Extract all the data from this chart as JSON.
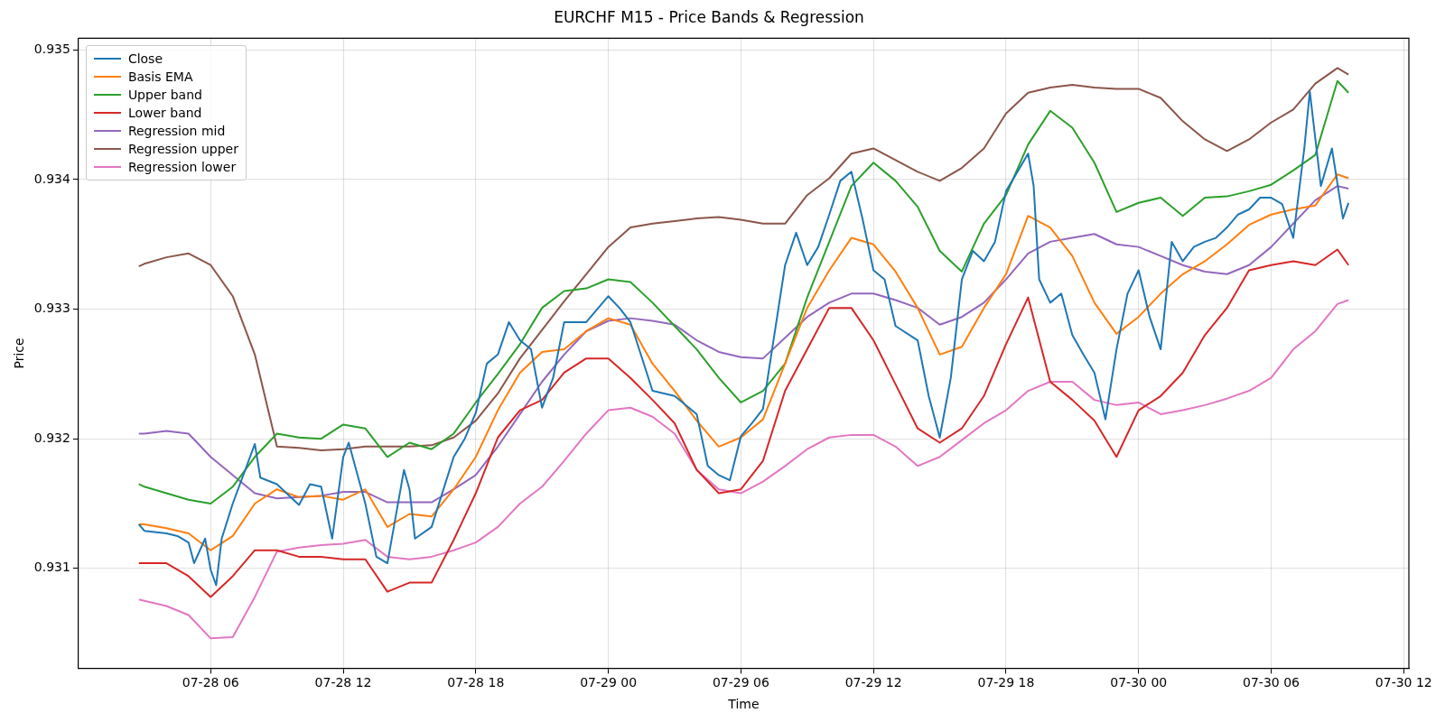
{
  "chart_data": {
    "type": "line",
    "title": "EURCHF M15 - Price Bands & Regression",
    "xlabel": "Time",
    "ylabel": "Price",
    "xlim": [
      "--07-28T00:01",
      "--07-30T12:14"
    ],
    "xticks": [
      {
        "value": "--07-28T06:00",
        "label": "07-28 06"
      },
      {
        "value": "--07-28T12:00",
        "label": "07-28 12"
      },
      {
        "value": "--07-28T18:00",
        "label": "07-28 18"
      },
      {
        "value": "--07-29T00:00",
        "label": "07-29 00"
      },
      {
        "value": "--07-29T06:00",
        "label": "07-29 06"
      },
      {
        "value": "--07-29T12:00",
        "label": "07-29 12"
      },
      {
        "value": "--07-29T18:00",
        "label": "07-29 18"
      },
      {
        "value": "--07-30T00:00",
        "label": "07-30 00"
      },
      {
        "value": "--07-30T06:00",
        "label": "07-30 06"
      },
      {
        "value": "--07-30T12:00",
        "label": "07-30 12"
      }
    ],
    "ylim": [
      0.93023,
      0.93509
    ],
    "yticks": [
      0.931,
      0.932,
      0.933,
      0.934,
      0.935
    ],
    "grid": true,
    "legend": "top left",
    "x": [
      "--07-28T02:45",
      "--07-28T03:00",
      "--07-28T04:00",
      "--07-28T05:00",
      "--07-28T06:00",
      "--07-28T07:00",
      "--07-28T08:00",
      "--07-28T09:00",
      "--07-28T10:00",
      "--07-28T11:00",
      "--07-28T12:00",
      "--07-28T13:00",
      "--07-28T14:00",
      "--07-28T15:00",
      "--07-28T16:00",
      "--07-28T17:00",
      "--07-28T18:00",
      "--07-28T19:00",
      "--07-28T20:00",
      "--07-28T21:00",
      "--07-28T22:00",
      "--07-28T23:00",
      "--07-29T00:00",
      "--07-29T01:00",
      "--07-29T02:00",
      "--07-29T03:00",
      "--07-29T04:00",
      "--07-29T05:00",
      "--07-29T06:00",
      "--07-29T07:00",
      "--07-29T08:00",
      "--07-29T09:00",
      "--07-29T10:00",
      "--07-29T11:00",
      "--07-29T12:00",
      "--07-29T13:00",
      "--07-29T14:00",
      "--07-29T15:00",
      "--07-29T16:00",
      "--07-29T17:00",
      "--07-29T18:00",
      "--07-29T19:00",
      "--07-29T20:00",
      "--07-29T21:00",
      "--07-29T22:00",
      "--07-29T23:00",
      "--07-30T00:00",
      "--07-30T01:00",
      "--07-30T02:00",
      "--07-30T03:00",
      "--07-30T04:00",
      "--07-30T05:00",
      "--07-30T06:00",
      "--07-30T07:00",
      "--07-30T08:00",
      "--07-30T09:00",
      "--07-30T09:30"
    ],
    "series": [
      {
        "name": "Close",
        "color": "#1f77b4",
        "x": [
          "--07-28T02:45",
          "--07-28T03:00",
          "--07-28T04:00",
          "--07-28T04:30",
          "--07-28T05:00",
          "--07-28T05:15",
          "--07-28T05:45",
          "--07-28T06:00",
          "--07-28T06:15",
          "--07-28T06:30",
          "--07-28T07:00",
          "--07-28T08:00",
          "--07-28T08:15",
          "--07-28T09:00",
          "--07-28T10:00",
          "--07-28T10:30",
          "--07-28T11:00",
          "--07-28T11:30",
          "--07-28T12:00",
          "--07-28T12:15",
          "--07-28T13:00",
          "--07-28T13:30",
          "--07-28T14:00",
          "--07-28T14:45",
          "--07-28T15:00",
          "--07-28T15:15",
          "--07-28T16:00",
          "--07-28T17:00",
          "--07-28T17:30",
          "--07-28T18:00",
          "--07-28T18:30",
          "--07-28T19:00",
          "--07-28T19:30",
          "--07-28T20:00",
          "--07-28T20:30",
          "--07-28T21:00",
          "--07-28T21:30",
          "--07-28T22:00",
          "--07-28T23:00",
          "--07-29T00:00",
          "--07-29T00:30",
          "--07-29T01:00",
          "--07-29T02:00",
          "--07-29T03:00",
          "--07-29T04:00",
          "--07-29T04:30",
          "--07-29T05:00",
          "--07-29T05:30",
          "--07-29T06:00",
          "--07-29T06:30",
          "--07-29T07:00",
          "--07-29T07:15",
          "--07-29T08:00",
          "--07-29T08:30",
          "--07-29T09:00",
          "--07-29T09:30",
          "--07-29T10:00",
          "--07-29T10:30",
          "--07-29T11:00",
          "--07-29T11:30",
          "--07-29T12:00",
          "--07-29T12:30",
          "--07-29T13:00",
          "--07-29T14:00",
          "--07-29T14:30",
          "--07-29T15:00",
          "--07-29T15:30",
          "--07-29T16:00",
          "--07-29T16:30",
          "--07-29T17:00",
          "--07-29T17:30",
          "--07-29T18:00",
          "--07-29T19:00",
          "--07-29T19:15",
          "--07-29T19:30",
          "--07-29T20:00",
          "--07-29T20:30",
          "--07-29T21:00",
          "--07-29T21:30",
          "--07-29T22:00",
          "--07-29T22:30",
          "--07-29T23:00",
          "--07-29T23:30",
          "--07-30T00:00",
          "--07-30T00:30",
          "--07-30T01:00",
          "--07-30T01:30",
          "--07-30T02:00",
          "--07-30T02:30",
          "--07-30T03:00",
          "--07-30T03:30",
          "--07-30T04:00",
          "--07-30T04:30",
          "--07-30T05:00",
          "--07-30T05:30",
          "--07-30T06:00",
          "--07-30T06:30",
          "--07-30T07:00",
          "--07-30T07:30",
          "--07-30T07:45",
          "--07-30T08:15",
          "--07-30T08:45",
          "--07-30T09:15",
          "--07-30T09:30"
        ],
        "values": [
          0.93134,
          0.93129,
          0.93127,
          0.93125,
          0.9312,
          0.93104,
          0.93123,
          0.93099,
          0.93087,
          0.93123,
          0.9315,
          0.93196,
          0.9317,
          0.93165,
          0.93149,
          0.93165,
          0.93163,
          0.93123,
          0.93186,
          0.93197,
          0.9315,
          0.93109,
          0.93104,
          0.93176,
          0.93161,
          0.93123,
          0.93132,
          0.93186,
          0.932,
          0.9322,
          0.93258,
          0.93265,
          0.9329,
          0.93276,
          0.93269,
          0.93224,
          0.93247,
          0.9329,
          0.9329,
          0.9331,
          0.93301,
          0.9329,
          0.93237,
          0.93233,
          0.93219,
          0.93179,
          0.93172,
          0.93168,
          0.93202,
          0.93212,
          0.93223,
          0.93251,
          0.93334,
          0.93359,
          0.93334,
          0.93348,
          0.93373,
          0.93399,
          0.93406,
          0.9337,
          0.9333,
          0.93323,
          0.93287,
          0.93276,
          0.93233,
          0.93201,
          0.93247,
          0.93323,
          0.93345,
          0.93337,
          0.93352,
          0.93391,
          0.9342,
          0.93395,
          0.93323,
          0.93305,
          0.93312,
          0.9328,
          0.93265,
          0.93251,
          0.93215,
          0.93269,
          0.93312,
          0.9333,
          0.93294,
          0.93269,
          0.93352,
          0.93337,
          0.93348,
          0.93352,
          0.93355,
          0.93363,
          0.93373,
          0.93377,
          0.93386,
          0.93386,
          0.93381,
          0.93355,
          0.93424,
          0.93468,
          0.93395,
          0.93424,
          0.9337,
          0.93382
        ]
      },
      {
        "name": "Basis EMA",
        "color": "#ff7f0e",
        "values": [
          0.93134,
          0.93134,
          0.93131,
          0.93127,
          0.93114,
          0.93125,
          0.9315,
          0.93161,
          0.93155,
          0.93156,
          0.93153,
          0.93161,
          0.93132,
          0.93142,
          0.9314,
          0.93161,
          0.93186,
          0.93222,
          0.93251,
          0.93267,
          0.93269,
          0.93283,
          0.93293,
          0.93288,
          0.93258,
          0.93237,
          0.93214,
          0.93194,
          0.93201,
          0.93215,
          0.93258,
          0.93301,
          0.9333,
          0.93355,
          0.9335,
          0.93329,
          0.93301,
          0.93265,
          0.93271,
          0.93301,
          0.93327,
          0.93372,
          0.93363,
          0.93341,
          0.93305,
          0.93281,
          0.93294,
          0.93312,
          0.93327,
          0.93337,
          0.9335,
          0.93365,
          0.93373,
          0.93377,
          0.9338,
          0.93404,
          0.93401
        ]
      },
      {
        "name": "Upper band",
        "color": "#2ca02c",
        "values": [
          0.93165,
          0.93163,
          0.93158,
          0.93153,
          0.9315,
          0.93163,
          0.93186,
          0.93204,
          0.93201,
          0.932,
          0.93211,
          0.93208,
          0.93186,
          0.93197,
          0.93192,
          0.93204,
          0.93228,
          0.9325,
          0.93273,
          0.93301,
          0.93314,
          0.93316,
          0.93323,
          0.93321,
          0.93305,
          0.93287,
          0.93269,
          0.93247,
          0.93228,
          0.93237,
          0.93258,
          0.93309,
          0.93352,
          0.93395,
          0.93413,
          0.93399,
          0.93379,
          0.93345,
          0.93329,
          0.93366,
          0.93388,
          0.93427,
          0.93453,
          0.9344,
          0.93413,
          0.93375,
          0.93382,
          0.93386,
          0.93372,
          0.93386,
          0.93387,
          0.93391,
          0.93396,
          0.93407,
          0.93419,
          0.93476,
          0.93467
        ]
      },
      {
        "name": "Lower band",
        "color": "#d62728",
        "values": [
          0.93104,
          0.93104,
          0.93104,
          0.93094,
          0.93078,
          0.93094,
          0.93114,
          0.93114,
          0.93109,
          0.93109,
          0.93107,
          0.93107,
          0.93082,
          0.93089,
          0.93089,
          0.93122,
          0.93158,
          0.93201,
          0.93222,
          0.9323,
          0.93251,
          0.93262,
          0.93262,
          0.93247,
          0.9323,
          0.93212,
          0.93176,
          0.93158,
          0.93161,
          0.93183,
          0.93237,
          0.93269,
          0.93301,
          0.93301,
          0.93276,
          0.93242,
          0.93208,
          0.93197,
          0.93208,
          0.93233,
          0.93273,
          0.93309,
          0.93244,
          0.9323,
          0.93214,
          0.93186,
          0.93222,
          0.93233,
          0.93251,
          0.9328,
          0.93301,
          0.9333,
          0.93334,
          0.93337,
          0.93334,
          0.93346,
          0.93334
        ]
      },
      {
        "name": "Regression mid",
        "color": "#9467bd",
        "values": [
          0.93204,
          0.93204,
          0.93206,
          0.93204,
          0.93186,
          0.93172,
          0.93158,
          0.93154,
          0.93155,
          0.93156,
          0.93159,
          0.93159,
          0.93151,
          0.93151,
          0.93151,
          0.93161,
          0.93172,
          0.93194,
          0.93219,
          0.93244,
          0.93265,
          0.93283,
          0.93291,
          0.93293,
          0.93291,
          0.93288,
          0.93276,
          0.93267,
          0.93263,
          0.93262,
          0.93278,
          0.93294,
          0.93305,
          0.93312,
          0.93312,
          0.93307,
          0.93301,
          0.93288,
          0.93294,
          0.93305,
          0.93323,
          0.93343,
          0.93352,
          0.93355,
          0.93358,
          0.9335,
          0.93348,
          0.93341,
          0.93334,
          0.93329,
          0.93327,
          0.93334,
          0.93348,
          0.93366,
          0.93384,
          0.93395,
          0.93393
        ]
      },
      {
        "name": "Regression upper",
        "color": "#8c564b",
        "values": [
          0.93333,
          0.93335,
          0.9334,
          0.93343,
          0.93334,
          0.9331,
          0.93265,
          0.93194,
          0.93193,
          0.93191,
          0.93192,
          0.93194,
          0.93194,
          0.93194,
          0.93195,
          0.93201,
          0.93214,
          0.93235,
          0.93262,
          0.93284,
          0.93306,
          0.93327,
          0.93348,
          0.93363,
          0.93366,
          0.93368,
          0.9337,
          0.93371,
          0.93369,
          0.93366,
          0.93366,
          0.93388,
          0.93401,
          0.9342,
          0.93424,
          0.93415,
          0.93406,
          0.93399,
          0.93409,
          0.93424,
          0.93451,
          0.93467,
          0.93471,
          0.93473,
          0.93471,
          0.9347,
          0.9347,
          0.93463,
          0.93445,
          0.93431,
          0.93422,
          0.93431,
          0.93444,
          0.93454,
          0.93474,
          0.93486,
          0.93481
        ]
      },
      {
        "name": "Regression lower",
        "color": "#e377c2",
        "values": [
          0.93076,
          0.93075,
          0.93071,
          0.93064,
          0.93046,
          0.93047,
          0.93078,
          0.93113,
          0.93116,
          0.93118,
          0.93119,
          0.93122,
          0.93109,
          0.93107,
          0.93109,
          0.93114,
          0.9312,
          0.93132,
          0.9315,
          0.93163,
          0.93183,
          0.93204,
          0.93222,
          0.93224,
          0.93217,
          0.93204,
          0.93176,
          0.93161,
          0.93158,
          0.93167,
          0.93179,
          0.93192,
          0.93201,
          0.93203,
          0.93203,
          0.93194,
          0.93179,
          0.93186,
          0.93199,
          0.93212,
          0.93222,
          0.93237,
          0.93244,
          0.93244,
          0.9323,
          0.93226,
          0.93228,
          0.93219,
          0.93222,
          0.93226,
          0.93231,
          0.93237,
          0.93247,
          0.93269,
          0.93283,
          0.93304,
          0.93307
        ]
      }
    ]
  }
}
